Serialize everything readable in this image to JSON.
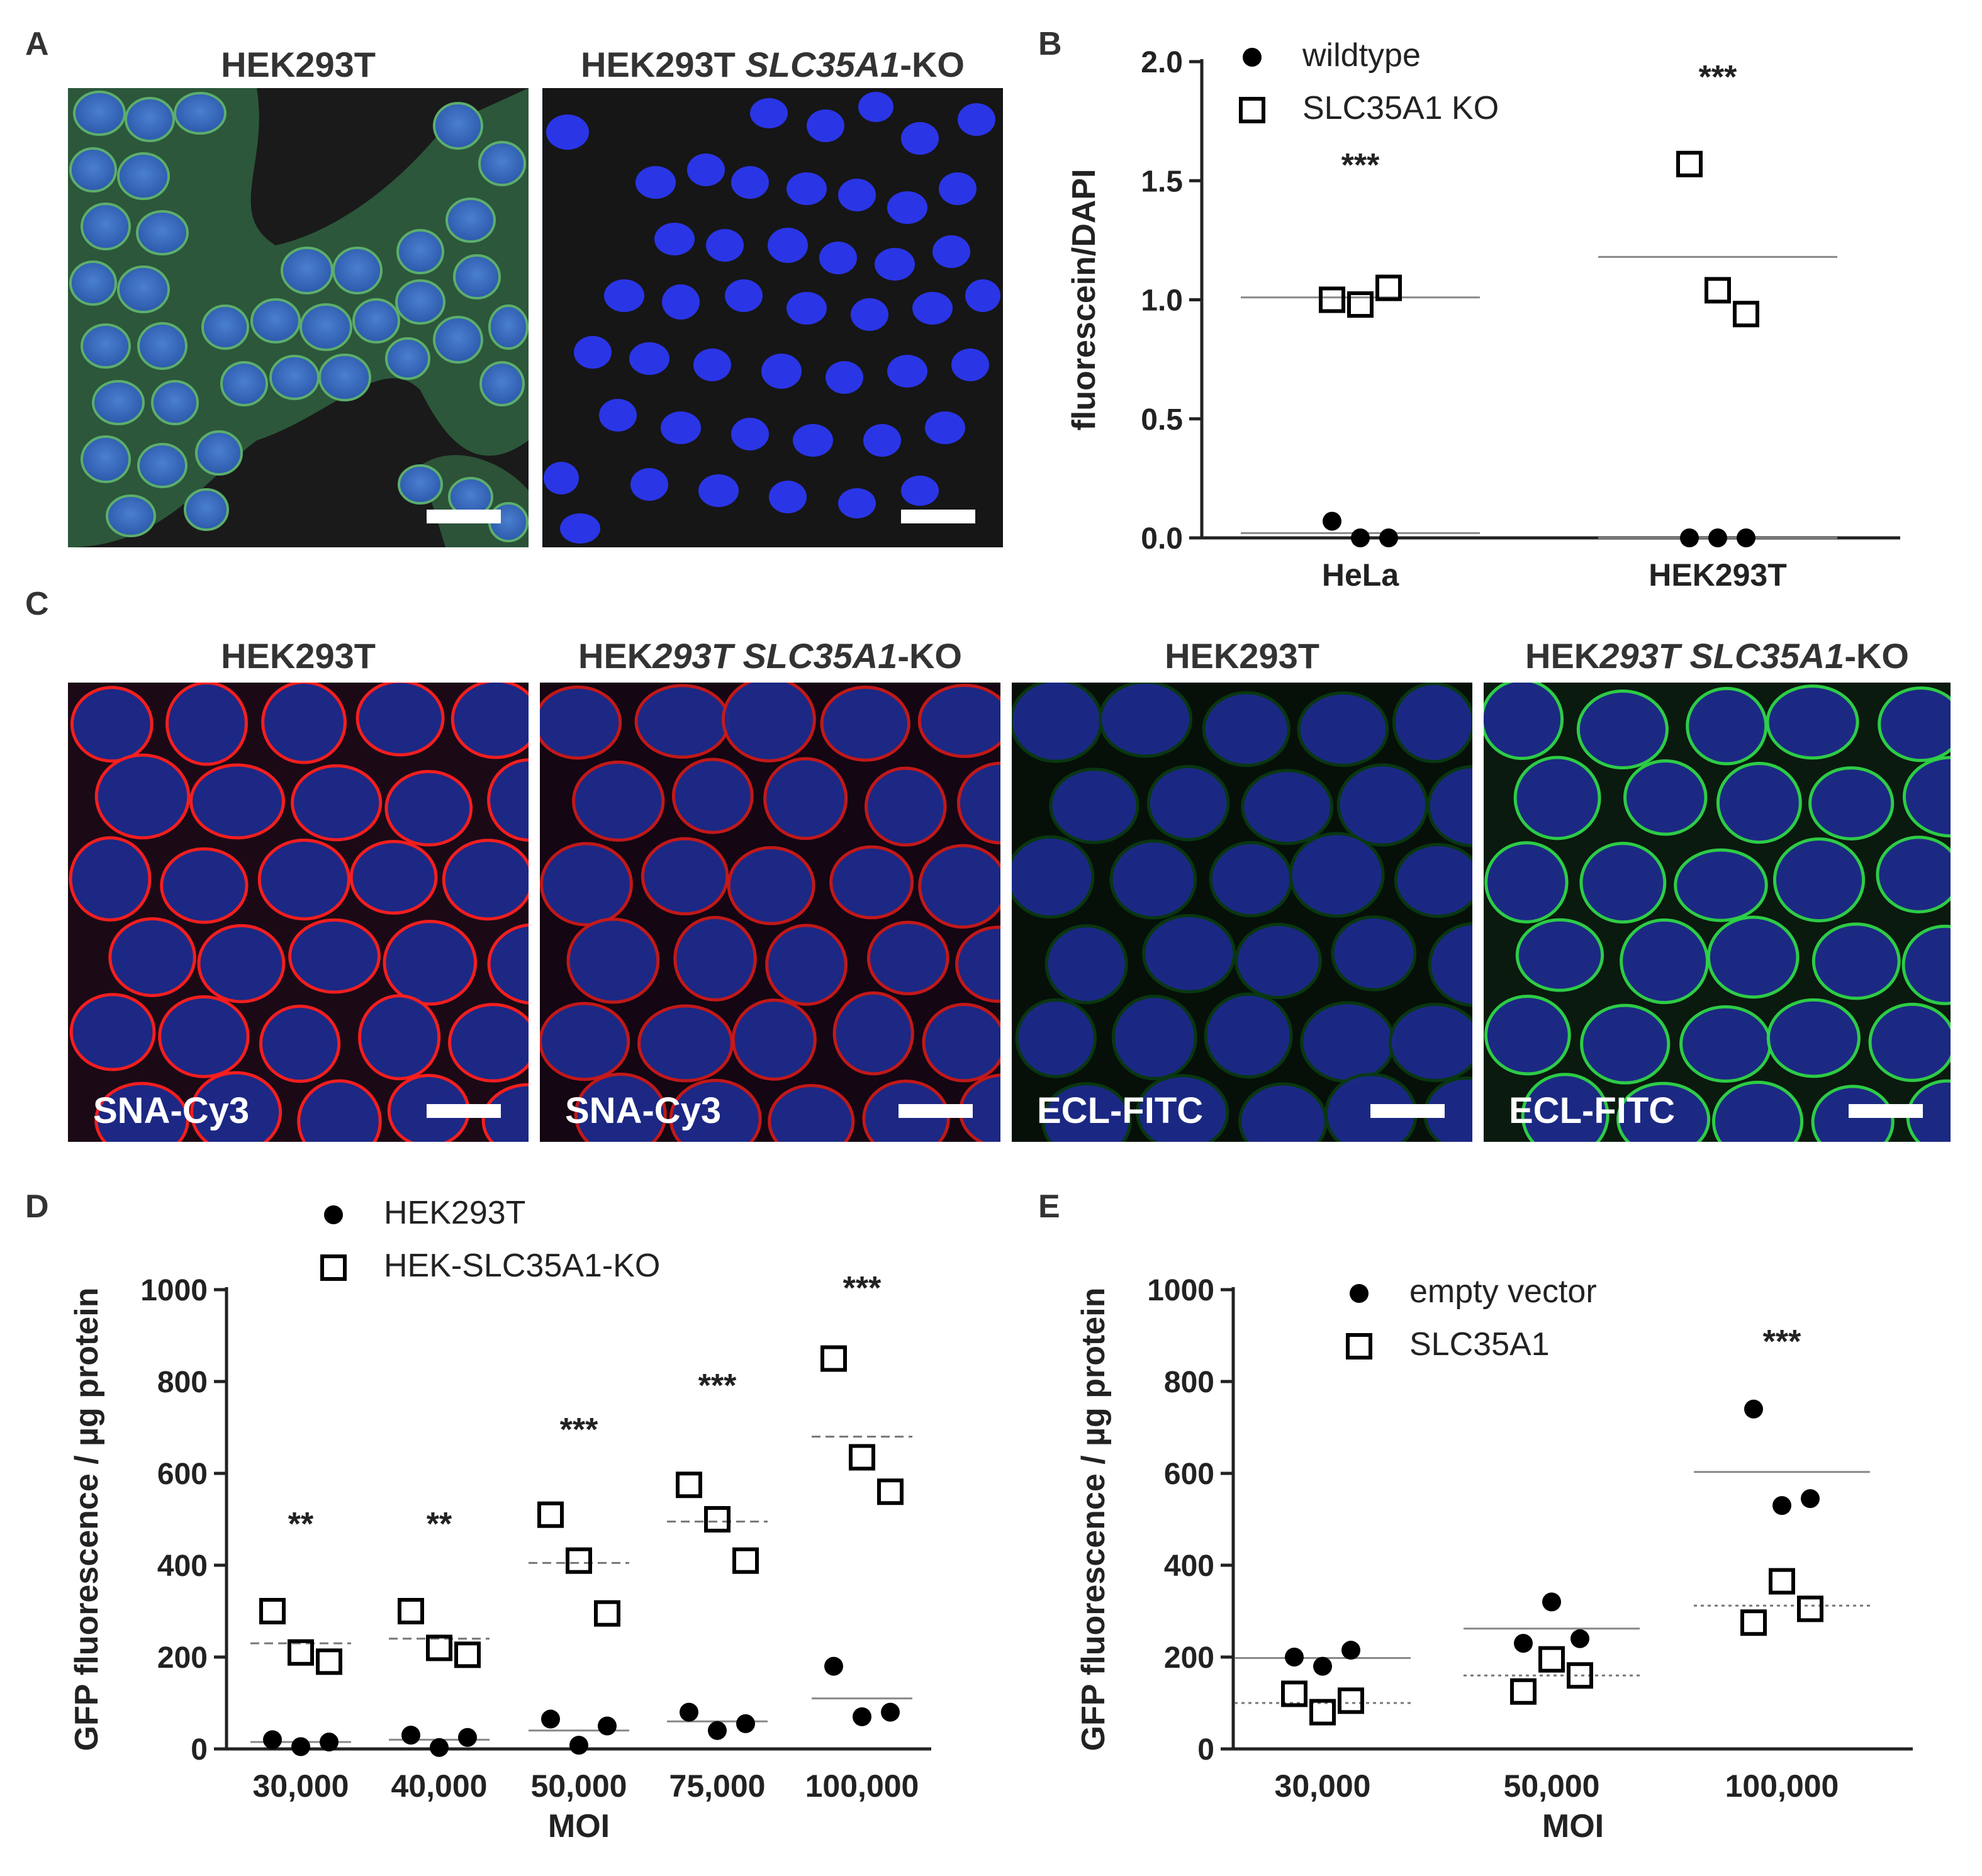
{
  "panel_letters": {
    "a": "A",
    "b": "B",
    "c": "C",
    "d": "D",
    "e": "E"
  },
  "panel_a": {
    "images": [
      {
        "title": "HEK293T",
        "title_italic": "",
        "title_suffix": "",
        "stain": "wga-green-dapi"
      },
      {
        "title": "HEK293T ",
        "title_italic": "SLC35A1",
        "title_suffix": "-KO",
        "stain": "dapi-only"
      }
    ]
  },
  "panel_c": {
    "images": [
      {
        "title": "HEK293T",
        "title_italic": "",
        "title_suffix": "",
        "label": "SNA-Cy3",
        "stain_color": "#ff2020"
      },
      {
        "title": "HEK",
        "title_italic": "293T SLC35A1",
        "title_suffix": "-KO",
        "label": "SNA-Cy3",
        "stain_color": "#cc1a1a"
      },
      {
        "title": "HEK293T",
        "title_italic": "",
        "title_suffix": "",
        "label": "ECL-FITC",
        "stain_color": "#0a3a12"
      },
      {
        "title": "HEK",
        "title_italic": "293T SLC35A1",
        "title_suffix": "-KO",
        "label": "ECL-FITC",
        "stain_color": "#2fd64a"
      }
    ]
  },
  "chart_data": [
    {
      "id": "B",
      "type": "scatter",
      "ylabel": "fluorescein/DAPI",
      "xlabel": "",
      "ylim": [
        0,
        2.0
      ],
      "yticks": [
        "0.0",
        "0.5",
        "1.0",
        "1.5",
        "2.0"
      ],
      "categories": [
        "HeLa",
        "HEK293T"
      ],
      "legend": {
        "position": "top",
        "entries": [
          "wildtype",
          "SLC35A1 KO"
        ]
      },
      "series": [
        {
          "name": "wildtype",
          "marker": "filled-circle",
          "points": [
            [
              0,
              0.07
            ],
            [
              0,
              0.0
            ],
            [
              0,
              0.0
            ],
            [
              1,
              0.0
            ],
            [
              1,
              0.0
            ],
            [
              1,
              0.0
            ]
          ],
          "means": [
            0.02,
            0.0
          ],
          "mean_style": "solid"
        },
        {
          "name": "SLC35A1 KO",
          "marker": "open-square",
          "points": [
            [
              0,
              1.0
            ],
            [
              0,
              0.98
            ],
            [
              0,
              1.05
            ],
            [
              1,
              1.57
            ],
            [
              1,
              1.04
            ],
            [
              1,
              0.94
            ]
          ],
          "means": [
            1.01,
            1.18
          ],
          "mean_style": "solid"
        }
      ],
      "significance": [
        "***",
        "***"
      ]
    },
    {
      "id": "D",
      "type": "scatter",
      "ylabel": "GFP fluorescence / µg protein",
      "xlabel": "MOI",
      "ylim": [
        0,
        1000
      ],
      "yticks": [
        "0",
        "200",
        "400",
        "600",
        "800",
        "1000"
      ],
      "categories": [
        "30,000",
        "40,000",
        "50,000",
        "75,000",
        "100,000"
      ],
      "legend": {
        "position": "top",
        "entries": [
          "HEK293T",
          "HEK-SLC35A1-KO"
        ]
      },
      "series": [
        {
          "name": "HEK293T",
          "marker": "filled-circle",
          "points": [
            [
              0,
              20
            ],
            [
              0,
              5
            ],
            [
              0,
              15
            ],
            [
              1,
              30
            ],
            [
              1,
              3
            ],
            [
              1,
              25
            ],
            [
              2,
              65
            ],
            [
              2,
              8
            ],
            [
              2,
              50
            ],
            [
              3,
              80
            ],
            [
              3,
              40
            ],
            [
              3,
              55
            ],
            [
              4,
              180
            ],
            [
              4,
              70
            ],
            [
              4,
              80
            ]
          ],
          "means": [
            15,
            20,
            40,
            60,
            110
          ],
          "mean_style": "solid"
        },
        {
          "name": "HEK-SLC35A1-KO",
          "marker": "open-square",
          "points": [
            [
              0,
              300
            ],
            [
              0,
              210
            ],
            [
              0,
              190
            ],
            [
              1,
              300
            ],
            [
              1,
              220
            ],
            [
              1,
              205
            ],
            [
              2,
              510
            ],
            [
              2,
              410
            ],
            [
              2,
              295
            ],
            [
              3,
              575
            ],
            [
              3,
              500
            ],
            [
              3,
              410
            ],
            [
              4,
              850
            ],
            [
              4,
              635
            ],
            [
              4,
              560
            ]
          ],
          "means": [
            230,
            240,
            405,
            495,
            680
          ],
          "mean_style": "dashed"
        }
      ],
      "significance": [
        "**",
        "**",
        "***",
        "***",
        "***"
      ]
    },
    {
      "id": "E",
      "type": "scatter",
      "ylabel": "GFP fluorescence / µg protein",
      "xlabel": "MOI",
      "ylim": [
        0,
        1000
      ],
      "yticks": [
        "0",
        "200",
        "400",
        "600",
        "800",
        "1000"
      ],
      "categories": [
        "30,000",
        "50,000",
        "100,000"
      ],
      "legend": {
        "position": "top",
        "entries": [
          "empty vector",
          "SLC35A1"
        ]
      },
      "series": [
        {
          "name": "empty vector",
          "marker": "filled-circle",
          "points": [
            [
              0,
              200
            ],
            [
              0,
              180
            ],
            [
              0,
              215
            ],
            [
              1,
              230
            ],
            [
              1,
              320
            ],
            [
              1,
              240
            ],
            [
              2,
              740
            ],
            [
              2,
              530
            ],
            [
              2,
              545
            ]
          ],
          "means": [
            198,
            262,
            603
          ],
          "mean_style": "solid"
        },
        {
          "name": "SLC35A1",
          "marker": "open-square",
          "points": [
            [
              0,
              120
            ],
            [
              0,
              80
            ],
            [
              0,
              105
            ],
            [
              1,
              125
            ],
            [
              1,
              195
            ],
            [
              1,
              160
            ],
            [
              2,
              275
            ],
            [
              2,
              365
            ],
            [
              2,
              305
            ]
          ],
          "means": [
            100,
            160,
            312
          ],
          "mean_style": "dotted"
        }
      ],
      "significance": [
        "",
        "",
        "***"
      ]
    }
  ]
}
